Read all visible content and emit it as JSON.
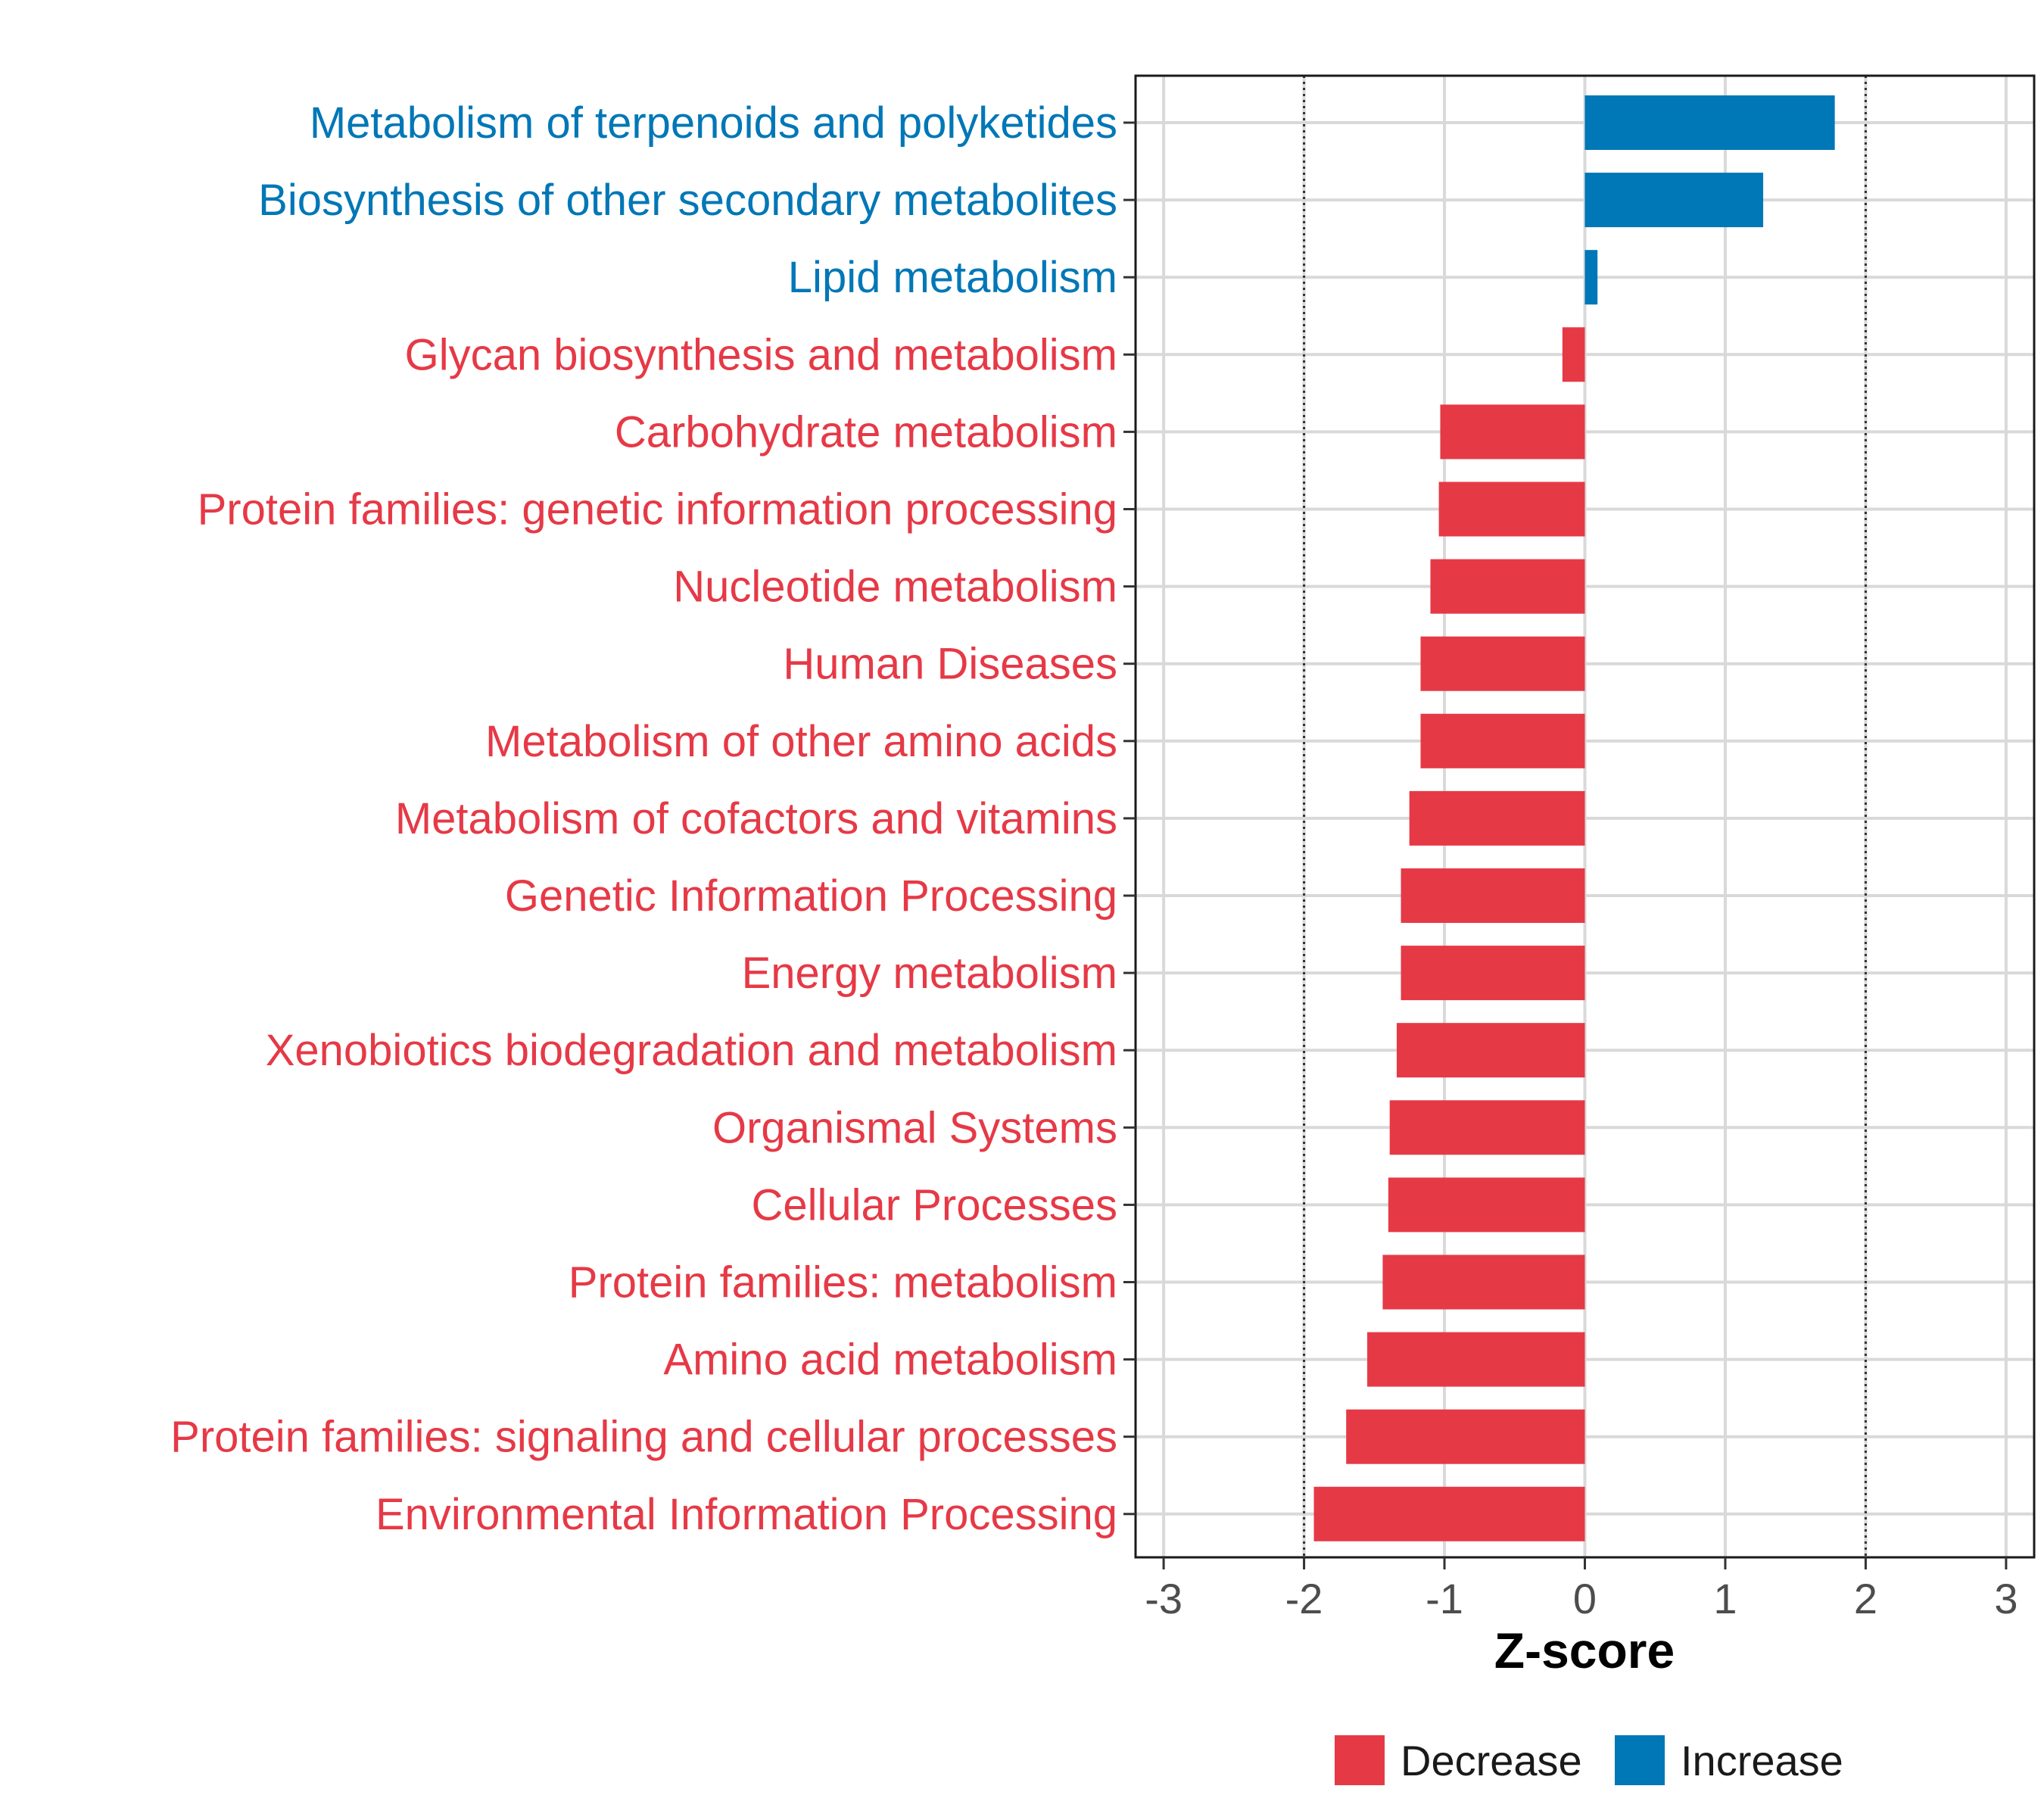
{
  "chart_data": {
    "type": "bar",
    "orientation": "horizontal",
    "categories": [
      "Metabolism of terpenoids and polyketides",
      "Biosynthesis of other secondary metabolites",
      "Lipid metabolism",
      "Glycan biosynthesis and metabolism",
      "Carbohydrate metabolism",
      "Protein families: genetic information processing",
      "Nucleotide metabolism",
      "Human Diseases",
      "Metabolism of other amino acids",
      "Metabolism of cofactors and vitamins",
      "Genetic Information Processing",
      "Energy metabolism",
      "Xenobiotics biodegradation and metabolism",
      "Organismal Systems",
      "Cellular Processes",
      "Protein families: metabolism",
      "Amino acid metabolism",
      "Protein families: signaling and cellular processes",
      "Environmental Information Processing"
    ],
    "values": [
      1.78,
      1.27,
      0.09,
      -0.16,
      -1.03,
      -1.04,
      -1.1,
      -1.17,
      -1.17,
      -1.25,
      -1.31,
      -1.31,
      -1.34,
      -1.39,
      -1.4,
      -1.44,
      -1.55,
      -1.7,
      -1.93
    ],
    "groups": [
      "Increase",
      "Increase",
      "Increase",
      "Decrease",
      "Decrease",
      "Decrease",
      "Decrease",
      "Decrease",
      "Decrease",
      "Decrease",
      "Decrease",
      "Decrease",
      "Decrease",
      "Decrease",
      "Decrease",
      "Decrease",
      "Decrease",
      "Decrease",
      "Decrease"
    ],
    "xlabel": "Z-score",
    "ylabel": "",
    "xlim": [
      -3.2,
      3.2
    ],
    "xticks": [
      "-3",
      "-2",
      "-1",
      "0",
      "1",
      "2",
      "3"
    ],
    "reference_lines": [
      -2,
      2
    ],
    "grid": true,
    "colors": {
      "Decrease": "#E63946",
      "Increase": "#0077B6"
    },
    "legend": {
      "position": "bottom",
      "entries": [
        {
          "label": "Decrease",
          "color": "#E63946"
        },
        {
          "label": "Increase",
          "color": "#0077B6"
        }
      ]
    }
  }
}
